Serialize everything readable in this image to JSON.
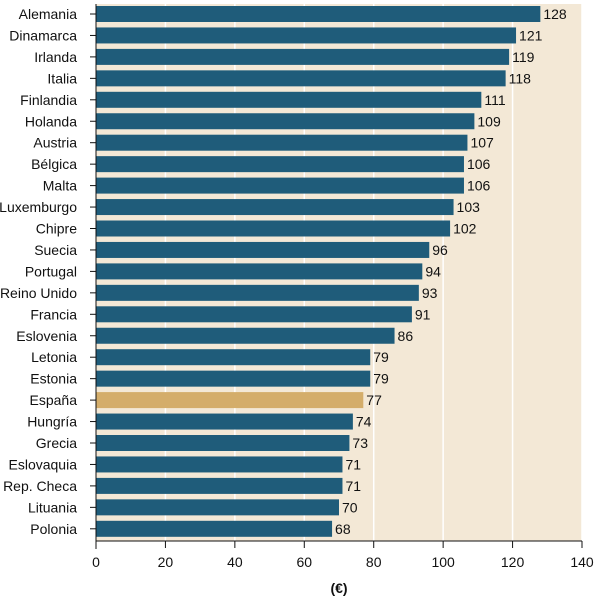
{
  "chart_data": {
    "type": "bar",
    "orientation": "horizontal",
    "categories": [
      "Alemania",
      "Dinamarca",
      "Irlanda",
      "Italia",
      "Finlandia",
      "Holanda",
      "Austria",
      "Bélgica",
      "Malta",
      "Luxemburgo",
      "Chipre",
      "Suecia",
      "Portugal",
      "Reino Unido",
      "Francia",
      "Eslovenia",
      "Letonia",
      "Estonia",
      "España",
      "Hungría",
      "Grecia",
      "Eslovaquia",
      "Rep. Checa",
      "Lituania",
      "Polonia"
    ],
    "values": [
      128,
      121,
      119,
      118,
      111,
      109,
      107,
      106,
      106,
      103,
      102,
      96,
      94,
      93,
      91,
      86,
      79,
      79,
      77,
      74,
      73,
      71,
      71,
      70,
      68
    ],
    "value_labels": [
      "128",
      "121",
      "119",
      "118",
      "111",
      "109",
      "107",
      "106",
      "106",
      "103",
      "102",
      "96",
      "94",
      "93",
      "91",
      "86",
      "79",
      "79",
      "77",
      "74",
      "73",
      "71",
      "71",
      "70",
      "68"
    ],
    "highlight_category": "España",
    "xlabel": "(€)",
    "xlim": [
      0,
      140
    ],
    "xticks": [
      0,
      20,
      40,
      60,
      80,
      100,
      120,
      140
    ],
    "xtick_labels": [
      "0",
      "20",
      "40",
      "60",
      "80",
      "100",
      "120",
      "140"
    ],
    "grid": "vertical",
    "colors": {
      "bar": "#1f5c7a",
      "highlight": "#d4ad6a",
      "background": "#f3e8d6",
      "grid": "#ffffff",
      "axis": "#111111"
    }
  }
}
